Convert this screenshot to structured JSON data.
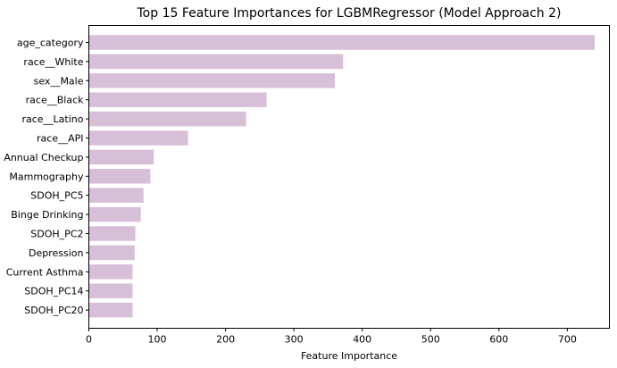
{
  "chart_data": {
    "type": "bar",
    "orientation": "horizontal",
    "title": "Top 15 Feature Importances for LGBMRegressor (Model Approach 2)",
    "xlabel": "Feature Importance",
    "ylabel": "",
    "xlim": [
      0,
      775
    ],
    "xticks": [
      0,
      100,
      200,
      300,
      400,
      500,
      600,
      700
    ],
    "grid": false,
    "bar_color": "#d8bfd8",
    "categories": [
      "age_category",
      "race__White",
      "sex__Male",
      "race__Black",
      "race__Latino",
      "race__API",
      "Annual Checkup",
      "Mammography",
      "SDOH_PC5",
      "Binge Drinking",
      "SDOH_PC2",
      "Depression",
      "Current Asthma",
      "SDOH_PC14",
      "SDOH_PC20"
    ],
    "values": [
      740,
      372,
      360,
      260,
      230,
      145,
      95,
      90,
      80,
      76,
      68,
      67,
      64,
      64,
      64
    ]
  }
}
